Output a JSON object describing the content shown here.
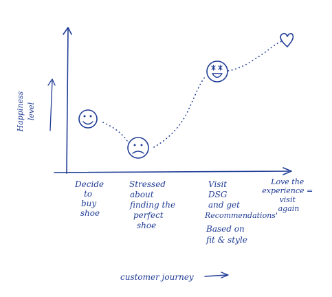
{
  "diagram": {
    "y_axis_label_lines": [
      "Happiness",
      "level"
    ],
    "x_axis_label": "customer journey",
    "stages": [
      {
        "label_lines": [
          "Decide",
          "to",
          "buy",
          "shoe"
        ],
        "emotion": "happy-face-icon"
      },
      {
        "label_lines": [
          "Stressed",
          "about",
          "finding the",
          "perfect",
          "shoe"
        ],
        "emotion": "sad-face-icon"
      },
      {
        "label_lines": [
          "Visit",
          "DSG",
          "and get",
          "Recommendations'",
          "Based on",
          "fit & style"
        ],
        "emotion": "star-eyes-face-icon"
      },
      {
        "label_lines": [
          "Love the",
          "experience =",
          "visit",
          "again"
        ],
        "emotion": "heart-icon"
      }
    ],
    "colors": {
      "ink": "#1f3b95",
      "background": "#ffffff"
    }
  }
}
